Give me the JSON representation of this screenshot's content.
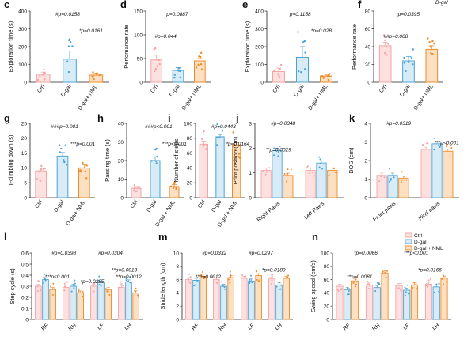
{
  "figure": {
    "colors": {
      "Ctrl": "#f4a4a4",
      "D-gal": "#4aa3d8",
      "D-gal + NML": "#ef8a2a"
    }
  },
  "chart_data": [
    {
      "panel": "c",
      "type": "bar",
      "ylabel": "Exploration time (s)",
      "ylim": [
        0,
        400
      ],
      "yticks": [
        0,
        100,
        200,
        300,
        400
      ],
      "categories": [
        "Ctrl",
        "D-gal",
        "D-gal+ NML"
      ],
      "values": [
        45,
        130,
        40
      ],
      "errors": [
        12,
        45,
        12
      ],
      "annotations": [
        {
          "text": "#p=0.0158",
          "pos": "top"
        },
        {
          "text": "*p=0.0161",
          "pos": "right"
        }
      ]
    },
    {
      "panel": "d",
      "type": "bar",
      "ylabel": "Perfomance rate",
      "ylim": [
        0,
        150
      ],
      "yticks": [
        0,
        50,
        100,
        150
      ],
      "categories": [
        "Ctrl",
        "D-gal",
        "D-gal+ NML"
      ],
      "values": [
        47,
        25,
        45
      ],
      "errors": [
        10,
        6,
        5
      ],
      "annotations": [
        {
          "text": "p=0.0887",
          "pos": "top"
        },
        {
          "text": "#p=0.044",
          "pos": "mid"
        }
      ]
    },
    {
      "panel": "e",
      "type": "bar",
      "ylabel": "Exploration time (s)",
      "ylim": [
        0,
        400
      ],
      "yticks": [
        0,
        100,
        200,
        300,
        400
      ],
      "categories": [
        "Ctrl",
        "D-gal",
        "D-gal+ NML"
      ],
      "values": [
        60,
        140,
        35
      ],
      "errors": [
        20,
        60,
        10
      ],
      "annotations": [
        {
          "text": "p=0.1158",
          "pos": "top"
        },
        {
          "text": "*p=0.028",
          "pos": "right"
        }
      ]
    },
    {
      "panel": "f",
      "type": "bar",
      "ylabel": "Performance rate",
      "ylim": [
        0,
        80
      ],
      "yticks": [
        0,
        20,
        40,
        60,
        80
      ],
      "categories": [
        "Ctrl",
        "D-gal",
        "D-gal+ NML"
      ],
      "values": [
        41,
        24,
        37
      ],
      "errors": [
        4,
        5,
        4
      ],
      "annotations": [
        {
          "text": "D-gal",
          "pos": "corner"
        },
        {
          "text": "*p=0.0395",
          "pos": "top"
        },
        {
          "text": "##p=0.008",
          "pos": "mid"
        }
      ]
    },
    {
      "panel": "g",
      "type": "bar",
      "ylabel": "T-climbing down (s)",
      "ylim": [
        0,
        25
      ],
      "yticks": [
        0,
        5,
        10,
        15,
        20,
        25
      ],
      "categories": [
        "Ctrl",
        "D-gal",
        "D-gal+ NML"
      ],
      "values": [
        9,
        14,
        10
      ],
      "errors": [
        1,
        1.2,
        1
      ],
      "annotations": [
        {
          "text": "###p=0.001",
          "pos": "top"
        },
        {
          "text": "***p=0.001",
          "pos": "right"
        }
      ]
    },
    {
      "panel": "h",
      "type": "bar",
      "ylabel": "Passing time (s)",
      "ylim": [
        0,
        40
      ],
      "yticks": [
        0,
        10,
        20,
        30,
        40
      ],
      "categories": [
        "Ctrl",
        "D-gal",
        "D-gal + NML"
      ],
      "values": [
        5,
        20,
        6
      ],
      "errors": [
        1,
        2,
        1
      ],
      "annotations": [
        {
          "text": "###p<0.001",
          "pos": "top"
        },
        {
          "text": "***p<0.001",
          "pos": "right"
        }
      ]
    },
    {
      "panel": "i",
      "type": "bar",
      "ylabel": "Number of steps",
      "ylim": [
        0,
        100
      ],
      "yticks": [
        0,
        20,
        40,
        60,
        80,
        100
      ],
      "categories": [
        "Ctrl",
        "D-gal",
        "D-gal + NML"
      ],
      "values": [
        72,
        82,
        71
      ],
      "errors": [
        4,
        3,
        3
      ],
      "annotations": [
        {
          "text": "#p=0.0443",
          "pos": "top"
        },
        {
          "text": "*p=0.0164",
          "pos": "right"
        }
      ]
    },
    {
      "panel": "j",
      "type": "bar",
      "ylabel": "Print position (cm)",
      "ylim": [
        0,
        3
      ],
      "yticks": [
        0,
        1,
        2,
        3
      ],
      "categories": [
        "Right Paws",
        "Left Paws"
      ],
      "series": [
        {
          "name": "Ctrl",
          "values": [
            1.1,
            1.1
          ]
        },
        {
          "name": "D-gal",
          "values": [
            1.9,
            1.4
          ]
        },
        {
          "name": "D-gal + NML",
          "values": [
            0.9,
            1.1
          ]
        }
      ],
      "annotations": [
        {
          "text": "#p=0.0348",
          "pos": "top"
        },
        {
          "text": "**p=0.0029",
          "pos": "mid"
        }
      ]
    },
    {
      "panel": "k",
      "type": "bar",
      "ylabel": "BOS (cm)",
      "ylim": [
        0,
        4
      ],
      "yticks": [
        0,
        1,
        2,
        3,
        4
      ],
      "categories": [
        "Front paws",
        "Hind paws"
      ],
      "series": [
        {
          "name": "Ctrl",
          "values": [
            1.2,
            2.6
          ]
        },
        {
          "name": "D-gal",
          "values": [
            1.2,
            2.9
          ]
        },
        {
          "name": "D-gal + NML",
          "values": [
            1.05,
            2.5
          ]
        }
      ],
      "annotations": [
        {
          "text": "#p=0.0319",
          "pos": "top"
        },
        {
          "text": "***p<0.001",
          "pos": "right"
        }
      ]
    },
    {
      "panel": "l",
      "type": "bar",
      "ylabel": "Step cycle (s)",
      "ylim": [
        0,
        0.6
      ],
      "yticks": [
        0,
        0.1,
        0.2,
        0.3,
        0.4,
        0.5,
        0.6
      ],
      "categories": [
        "RF",
        "RH",
        "LF",
        "LH"
      ],
      "series": [
        {
          "name": "Ctrl",
          "values": [
            0.3,
            0.29,
            0.3,
            0.29
          ]
        },
        {
          "name": "D-gal",
          "values": [
            0.36,
            0.3,
            0.34,
            0.34
          ]
        },
        {
          "name": "D-gal + NML",
          "values": [
            0.27,
            0.24,
            0.27,
            0.24
          ]
        }
      ],
      "annotations": [
        {
          "text": "#p=0.0398",
          "pos": "top"
        },
        {
          "text": "***p<0.001",
          "pos": "mid"
        },
        {
          "text": "*p=0.0285",
          "pos": "mid"
        },
        {
          "text": "#p=0.0304",
          "pos": "top"
        },
        {
          "text": "**p=0.0012",
          "pos": "mid"
        },
        {
          "text": "**p=0.0013",
          "pos": "right"
        }
      ]
    },
    {
      "panel": "m",
      "type": "bar",
      "ylabel": "Stride length (cm)",
      "ylim": [
        0,
        10
      ],
      "yticks": [
        0,
        2,
        4,
        6,
        8,
        10
      ],
      "categories": [
        "RF",
        "RH",
        "LF",
        "LH"
      ],
      "series": [
        {
          "name": "Ctrl",
          "values": [
            6.0,
            6.0,
            6.2,
            6.1
          ]
        },
        {
          "name": "D-gal",
          "values": [
            5.9,
            5.0,
            5.8,
            5.2
          ]
        },
        {
          "name": "D-gal + NML",
          "values": [
            6.5,
            6.3,
            6.6,
            6.2
          ]
        }
      ],
      "annotations": [
        {
          "text": "#p=0.0332",
          "pos": "top"
        },
        {
          "text": "**p=0.0012",
          "pos": "mid"
        },
        {
          "text": "#p=0.0297",
          "pos": "top"
        },
        {
          "text": "*p=0.0189",
          "pos": "right"
        }
      ]
    },
    {
      "panel": "n",
      "type": "bar",
      "ylabel": "Swing speed (cm/s)",
      "ylim": [
        0,
        100
      ],
      "yticks": [
        0,
        20,
        40,
        60,
        80,
        100
      ],
      "categories": [
        "RF",
        "RH",
        "LF",
        "LH"
      ],
      "series": [
        {
          "name": "Ctrl",
          "values": [
            50,
            52,
            51,
            53
          ]
        },
        {
          "name": "D-gal",
          "values": [
            45,
            48,
            44,
            49
          ]
        },
        {
          "name": "D-gal + NML",
          "values": [
            58,
            70,
            52,
            62
          ]
        }
      ],
      "legend": [
        "Ctrl",
        "D-gal",
        "D-gal + NML"
      ],
      "annotations": [
        {
          "text": "*p=0.0066",
          "pos": "top"
        },
        {
          "text": "***p<0.001",
          "pos": "top"
        },
        {
          "text": "**p=0.0081",
          "pos": "mid"
        },
        {
          "text": "*p=0.0166",
          "pos": "right"
        }
      ]
    }
  ]
}
